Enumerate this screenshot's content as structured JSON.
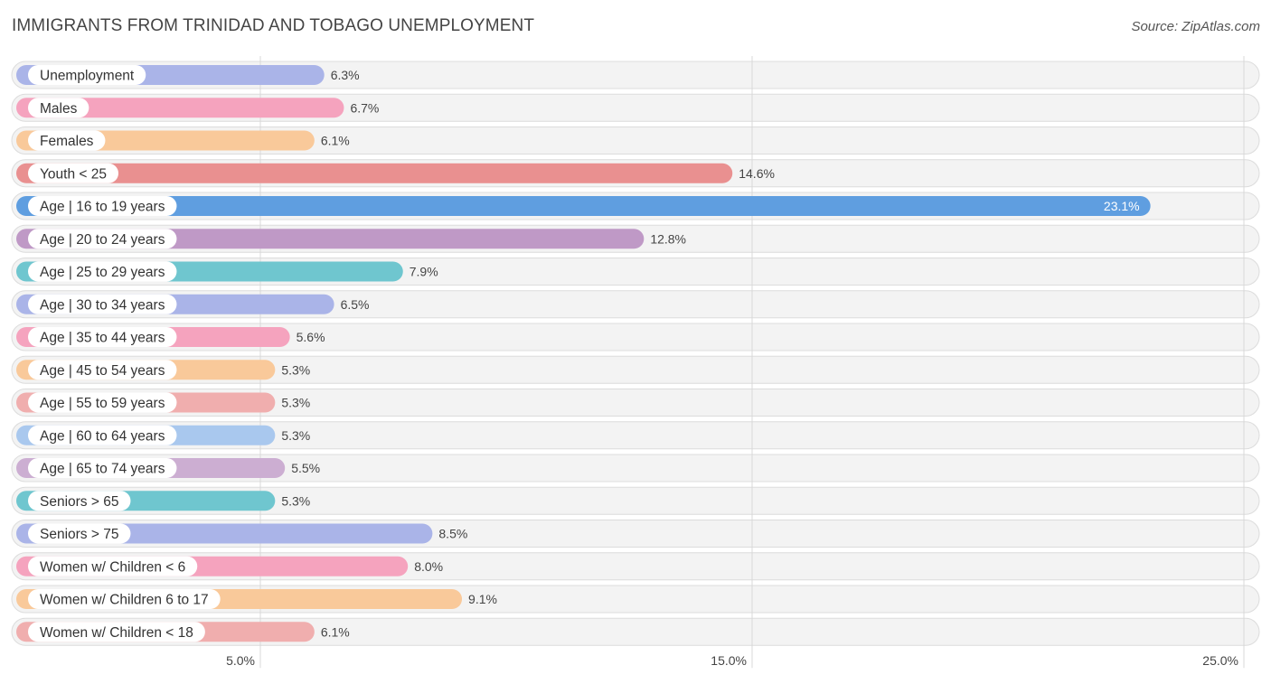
{
  "chart_data": {
    "type": "bar",
    "orientation": "horizontal",
    "title": "IMMIGRANTS FROM TRINIDAD AND TOBAGO UNEMPLOYMENT",
    "source": "Source: ZipAtlas.com",
    "categories": [
      "Unemployment",
      "Males",
      "Females",
      "Youth < 25",
      "Age | 16 to 19 years",
      "Age | 20 to 24 years",
      "Age | 25 to 29 years",
      "Age | 30 to 34 years",
      "Age | 35 to 44 years",
      "Age | 45 to 54 years",
      "Age | 55 to 59 years",
      "Age | 60 to 64 years",
      "Age | 65 to 74 years",
      "Seniors > 65",
      "Seniors > 75",
      "Women w/ Children < 6",
      "Women w/ Children 6 to 17",
      "Women w/ Children < 18"
    ],
    "values": [
      6.3,
      6.7,
      6.1,
      14.6,
      23.1,
      12.8,
      7.9,
      6.5,
      5.6,
      5.3,
      5.3,
      5.3,
      5.5,
      5.3,
      8.5,
      8.0,
      9.1,
      6.1
    ],
    "value_labels": [
      "6.3%",
      "6.7%",
      "6.1%",
      "14.6%",
      "23.1%",
      "12.8%",
      "7.9%",
      "6.5%",
      "5.6%",
      "5.3%",
      "5.3%",
      "5.3%",
      "5.5%",
      "5.3%",
      "8.5%",
      "8.0%",
      "9.1%",
      "6.1%"
    ],
    "colors": [
      "#aab4e8",
      "#f5a3be",
      "#f9c99a",
      "#e99090",
      "#5f9ee0",
      "#bf99c6",
      "#6fc6cf",
      "#aab4e8",
      "#f5a3be",
      "#f9c99a",
      "#f0aeae",
      "#a9c8ee",
      "#ccaed2",
      "#6fc6cf",
      "#aab4e8",
      "#f5a3be",
      "#f9c99a",
      "#f0aeae"
    ],
    "highlight_index": 4,
    "xlim": [
      0,
      25
    ],
    "xticks": [
      5,
      15,
      25
    ],
    "xtick_labels": [
      "5.0%",
      "15.0%",
      "25.0%"
    ],
    "grid": true
  }
}
